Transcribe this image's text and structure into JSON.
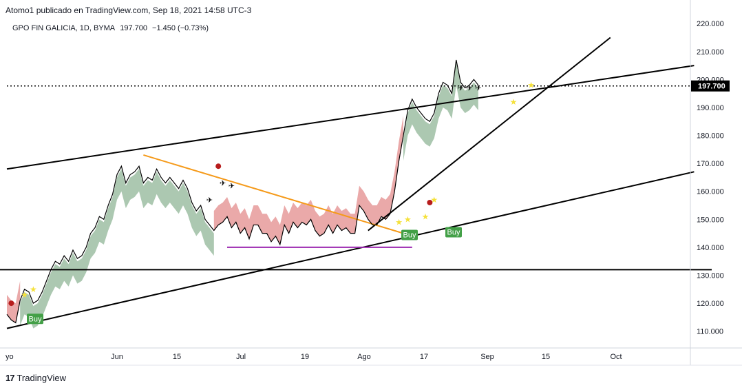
{
  "header": {
    "published": "Atomo1 publicado en TradingView.com, Sep 18, 2021 14:58 UTC-3"
  },
  "legend": {
    "symbol": "GPO FIN GALICIA, 1D, BYMA",
    "last": "197.700",
    "change": "−1.450 (−0.73%)"
  },
  "price_label": "197.700",
  "footer": {
    "logo": "17",
    "brand": "TradingView"
  },
  "colors": {
    "line": "#000000",
    "bull_cloud": "#a3c2a8",
    "bear_cloud": "#e8a0a0",
    "trend_orange": "#f59a1a",
    "support_purple": "#9c27b0",
    "buy_label": "#43a047",
    "sell_dot": "#b71c1c",
    "star": "#f5e13a"
  },
  "chart_data": {
    "type": "line",
    "title": "GPO FIN GALICIA, 1D, BYMA",
    "y_ticks": [
      "110.000",
      "120.000",
      "130.000",
      "140.000",
      "150.000",
      "160.000",
      "170.000",
      "180.000",
      "190.000",
      "200.000",
      "210.000",
      "220.000"
    ],
    "x_ticks": [
      "yo",
      "Jun",
      "15",
      "Jul",
      "19",
      "Ago",
      "17",
      "Sep",
      "15",
      "Oct"
    ],
    "ylim": [
      104,
      224
    ],
    "x_unit": "days since 2021-05-21",
    "series": [
      {
        "values": [
          [
            0,
            116
          ],
          [
            1,
            114
          ],
          [
            2,
            113
          ],
          [
            3,
            121
          ],
          [
            4,
            125
          ],
          [
            5,
            124
          ],
          [
            6,
            120
          ],
          [
            7,
            121
          ],
          [
            8,
            124
          ],
          [
            9,
            128
          ],
          [
            10,
            132
          ],
          [
            11,
            135
          ],
          [
            12,
            134
          ],
          [
            13,
            137
          ],
          [
            14,
            135
          ],
          [
            15,
            139
          ],
          [
            16,
            136
          ],
          [
            17,
            137
          ],
          [
            18,
            140
          ],
          [
            19,
            145
          ],
          [
            20,
            147
          ],
          [
            21,
            151
          ],
          [
            22,
            150
          ],
          [
            23,
            155
          ],
          [
            24,
            159
          ],
          [
            25,
            166
          ],
          [
            26,
            169
          ],
          [
            27,
            163
          ],
          [
            28,
            166
          ],
          [
            29,
            167
          ],
          [
            30,
            169
          ],
          [
            31,
            163
          ],
          [
            32,
            165
          ],
          [
            33,
            164
          ],
          [
            34,
            168
          ],
          [
            35,
            165
          ],
          [
            36,
            163
          ],
          [
            37,
            165
          ],
          [
            38,
            163
          ],
          [
            39,
            161
          ],
          [
            40,
            164
          ],
          [
            41,
            161
          ],
          [
            42,
            156
          ],
          [
            43,
            153
          ],
          [
            44,
            155
          ],
          [
            45,
            150
          ],
          [
            46,
            148
          ],
          [
            47,
            146
          ],
          [
            48,
            148
          ],
          [
            49,
            149
          ],
          [
            50,
            151
          ],
          [
            51,
            147
          ],
          [
            52,
            149
          ],
          [
            53,
            145
          ],
          [
            54,
            147
          ],
          [
            55,
            143
          ],
          [
            56,
            148
          ],
          [
            57,
            148
          ],
          [
            58,
            145
          ],
          [
            59,
            145
          ],
          [
            60,
            142
          ],
          [
            61,
            144
          ],
          [
            62,
            141
          ],
          [
            63,
            148
          ],
          [
            64,
            145
          ],
          [
            65,
            149
          ],
          [
            66,
            147
          ],
          [
            67,
            149
          ],
          [
            68,
            148
          ],
          [
            69,
            150
          ],
          [
            70,
            146
          ],
          [
            71,
            144
          ],
          [
            72,
            145
          ],
          [
            73,
            148
          ],
          [
            74,
            145
          ],
          [
            75,
            148
          ],
          [
            76,
            146
          ],
          [
            77,
            147
          ],
          [
            78,
            145
          ],
          [
            79,
            145
          ],
          [
            80,
            155
          ],
          [
            81,
            153
          ],
          [
            82,
            150
          ],
          [
            83,
            148
          ],
          [
            84,
            148
          ],
          [
            85,
            151
          ],
          [
            86,
            150
          ],
          [
            87,
            152
          ],
          [
            88,
            160
          ],
          [
            89,
            171
          ],
          [
            90,
            180
          ],
          [
            91,
            189
          ],
          [
            92,
            193
          ],
          [
            93,
            190
          ],
          [
            94,
            188
          ],
          [
            95,
            186
          ],
          [
            96,
            185
          ],
          [
            97,
            188
          ],
          [
            98,
            195
          ],
          [
            99,
            199
          ],
          [
            100,
            198
          ],
          [
            101,
            195
          ],
          [
            102,
            207
          ],
          [
            103,
            199
          ],
          [
            104,
            197
          ],
          [
            105,
            198
          ],
          [
            106,
            200
          ],
          [
            107,
            198
          ]
        ]
      }
    ],
    "annotations": [
      "Buy",
      "Buy",
      "Buy"
    ],
    "price_line": 197.7
  }
}
